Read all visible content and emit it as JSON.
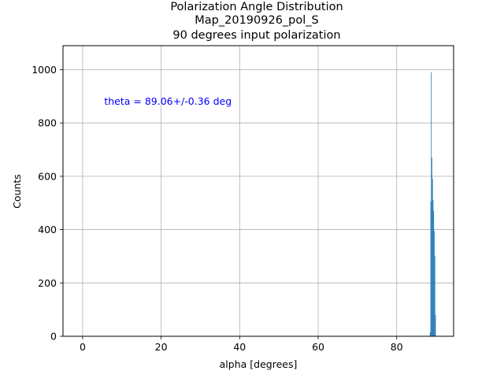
{
  "chart_data": {
    "type": "bar",
    "title_lines": [
      "Polarization Angle Distribution",
      "Map_20190926_pol_S",
      "90 degrees input polarization"
    ],
    "xlabel": "alpha [degrees]",
    "ylabel": "Counts",
    "xlim": [
      -5,
      94.5
    ],
    "ylim": [
      0,
      1090
    ],
    "xticks": [
      0,
      20,
      40,
      60,
      80
    ],
    "xtick_labels": [
      "0",
      "20",
      "40",
      "60",
      "80"
    ],
    "yticks": [
      0,
      200,
      400,
      600,
      800,
      1000
    ],
    "ytick_labels": [
      "0",
      "200",
      "400",
      "600",
      "800",
      "1000"
    ],
    "grid": true,
    "bar_color": "#1f77b4",
    "bins": [
      {
        "x": 88.45,
        "width": 0.15,
        "value": 15
      },
      {
        "x": 88.6,
        "width": 0.15,
        "value": 505
      },
      {
        "x": 88.75,
        "width": 0.15,
        "value": 990
      },
      {
        "x": 88.9,
        "width": 0.15,
        "value": 670
      },
      {
        "x": 89.05,
        "width": 0.15,
        "value": 590
      },
      {
        "x": 89.2,
        "width": 0.15,
        "value": 510
      },
      {
        "x": 89.35,
        "width": 0.15,
        "value": 470
      },
      {
        "x": 89.5,
        "width": 0.15,
        "value": 395
      },
      {
        "x": 89.65,
        "width": 0.15,
        "value": 300
      },
      {
        "x": 89.8,
        "width": 0.15,
        "value": 80
      }
    ],
    "annotation": {
      "text": "theta = 89.06+/-0.36 deg",
      "x": 5.5,
      "y": 880,
      "color": "#0000ff"
    }
  }
}
